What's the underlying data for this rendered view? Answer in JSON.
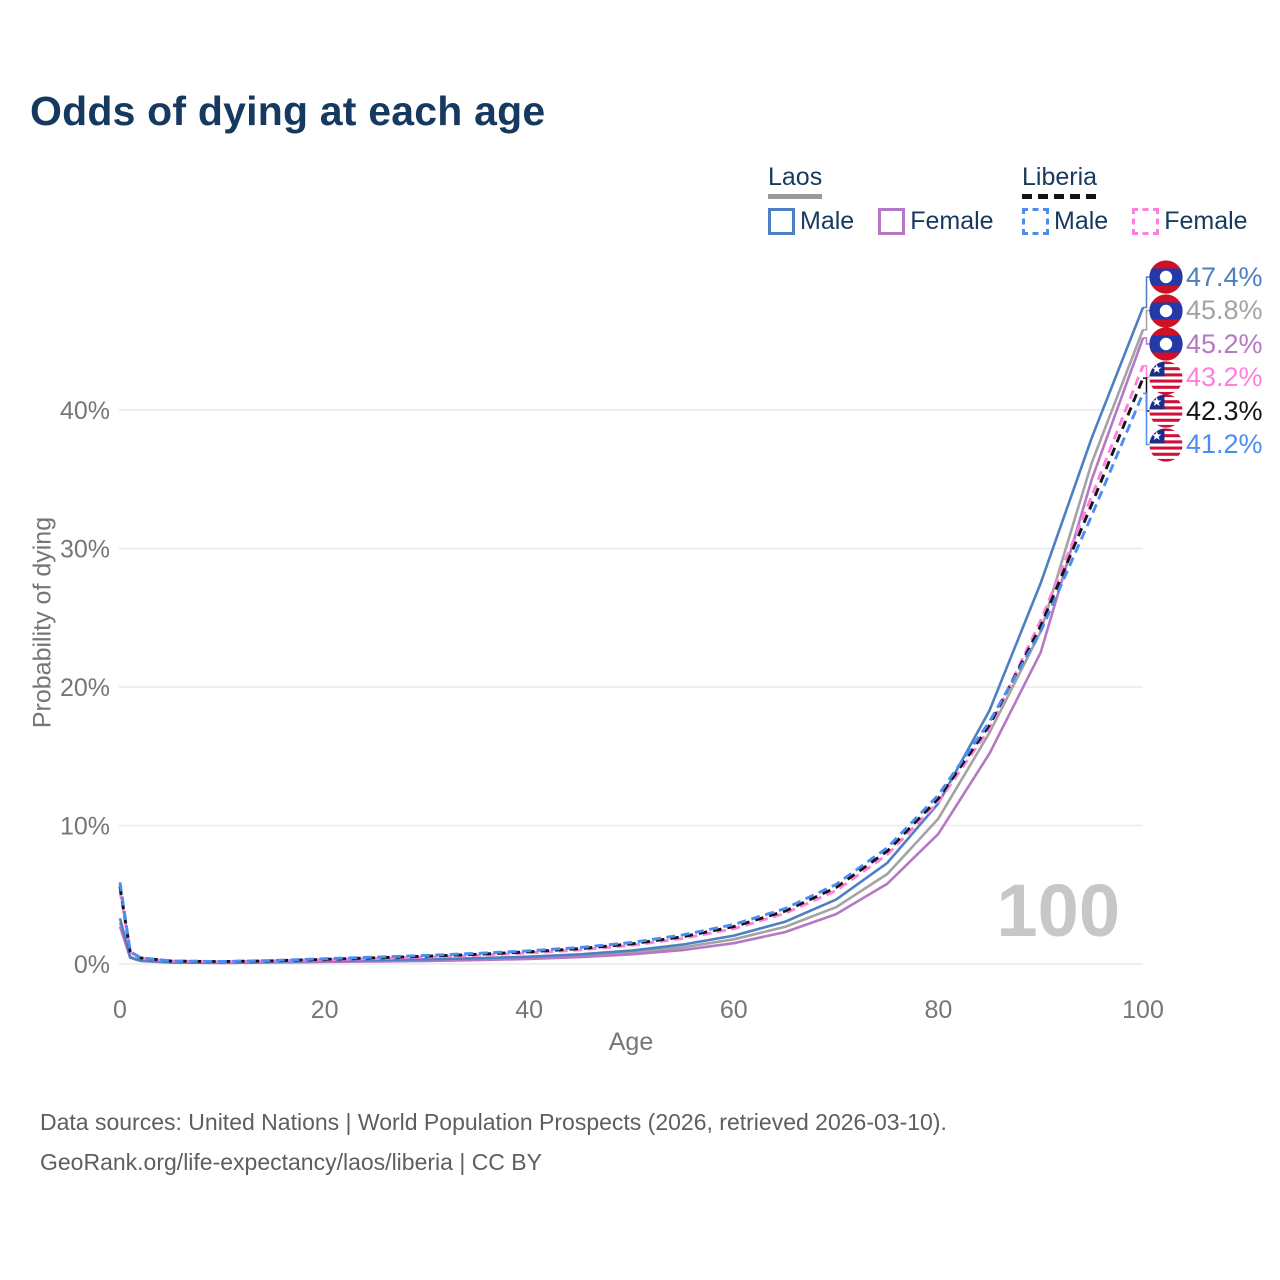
{
  "title": "Odds of dying at each age",
  "legend": {
    "groups": [
      {
        "country": "Laos",
        "line_style": "solid",
        "line_color": "#9a9a9a",
        "items": [
          {
            "label": "Male",
            "color": "#4e7fc1",
            "style": "solid"
          },
          {
            "label": "Female",
            "color": "#b678c4",
            "style": "solid"
          }
        ]
      },
      {
        "country": "Liberia",
        "line_style": "dashed",
        "line_color": "#141414",
        "items": [
          {
            "label": "Male",
            "color": "#4c8df2",
            "style": "dashed"
          },
          {
            "label": "Female",
            "color": "#ff7fdf",
            "style": "dashed"
          }
        ]
      }
    ]
  },
  "chart_data": {
    "type": "line",
    "title": "Odds of dying at each age",
    "xlabel": "Age",
    "ylabel": "Probability of dying",
    "x_ticks": [
      0,
      20,
      40,
      60,
      80,
      100
    ],
    "y_ticks": [
      "0%",
      "10%",
      "20%",
      "30%",
      "40%"
    ],
    "xlim": [
      0,
      100
    ],
    "ylim_percent": [
      0,
      49.5
    ],
    "grid": "horizontal",
    "legend_position": "top-right",
    "watermark": "100",
    "ages": [
      0,
      1,
      2,
      5,
      10,
      15,
      20,
      25,
      30,
      35,
      40,
      45,
      50,
      55,
      60,
      65,
      70,
      75,
      80,
      85,
      90,
      95,
      100
    ],
    "series": [
      {
        "name": "Laos Both",
        "color": "#a3a3a3",
        "dash": null,
        "values": [
          3.0,
          0.48,
          0.24,
          0.11,
          0.09,
          0.14,
          0.2,
          0.24,
          0.28,
          0.35,
          0.45,
          0.6,
          0.84,
          1.2,
          1.78,
          2.68,
          4.1,
          6.5,
          10.5,
          16.7,
          24.0,
          36.2,
          45.8
        ]
      },
      {
        "name": "Laos Female",
        "color": "#b678c4",
        "dash": null,
        "values": [
          2.7,
          0.45,
          0.22,
          0.1,
          0.08,
          0.11,
          0.15,
          0.18,
          0.22,
          0.28,
          0.37,
          0.5,
          0.7,
          1.0,
          1.5,
          2.3,
          3.6,
          5.8,
          9.4,
          15.2,
          22.5,
          35.0,
          45.2
        ]
      },
      {
        "name": "Laos Male",
        "color": "#4e7fc1",
        "dash": null,
        "values": [
          3.3,
          0.5,
          0.25,
          0.12,
          0.1,
          0.16,
          0.24,
          0.29,
          0.34,
          0.42,
          0.53,
          0.7,
          0.97,
          1.4,
          2.05,
          3.05,
          4.65,
          7.3,
          11.6,
          18.3,
          27.5,
          38.0,
          47.4
        ]
      },
      {
        "name": "Liberia Female",
        "color": "#ff7fdf",
        "dash": "9 5.5",
        "values": [
          5.3,
          0.85,
          0.42,
          0.2,
          0.16,
          0.21,
          0.3,
          0.4,
          0.5,
          0.63,
          0.8,
          1.02,
          1.35,
          1.85,
          2.55,
          3.65,
          5.3,
          7.9,
          11.7,
          17.0,
          24.8,
          33.8,
          43.2
        ]
      },
      {
        "name": "Liberia Both",
        "color": "#141414",
        "dash": "8.5 6",
        "values": [
          5.6,
          0.88,
          0.44,
          0.21,
          0.17,
          0.23,
          0.34,
          0.45,
          0.56,
          0.7,
          0.88,
          1.11,
          1.45,
          1.97,
          2.7,
          3.82,
          5.52,
          8.15,
          11.95,
          17.25,
          24.4,
          33.2,
          42.3
        ]
      },
      {
        "name": "Liberia Male",
        "color": "#4c8df2",
        "dash": "9 5.5",
        "values": [
          5.9,
          0.9,
          0.45,
          0.22,
          0.18,
          0.25,
          0.38,
          0.5,
          0.62,
          0.77,
          0.95,
          1.2,
          1.55,
          2.1,
          2.85,
          4.0,
          5.75,
          8.4,
          12.2,
          17.5,
          24.0,
          32.4,
          41.2
        ]
      }
    ],
    "end_labels": [
      {
        "text": "47.4%",
        "flag": "laos",
        "color": "#4e7fc1",
        "series": "Laos Male"
      },
      {
        "text": "45.8%",
        "flag": "laos",
        "color": "#a3a3a3",
        "series": "Laos Both"
      },
      {
        "text": "45.2%",
        "flag": "laos",
        "color": "#b678c4",
        "series": "Laos Female"
      },
      {
        "text": "43.2%",
        "flag": "liberia",
        "color": "#ff7fdf",
        "series": "Liberia Female"
      },
      {
        "text": "42.3%",
        "flag": "liberia",
        "color": "#141414",
        "series": "Liberia Both"
      },
      {
        "text": "41.2%",
        "flag": "liberia",
        "color": "#4c8df2",
        "series": "Liberia Male"
      }
    ]
  },
  "footer": {
    "line1": "Data sources: United Nations | World Population Prospects (2026, retrieved 2026-03-10).",
    "line2": "GeoRank.org/life-expectancy/laos/liberia | CC BY"
  }
}
